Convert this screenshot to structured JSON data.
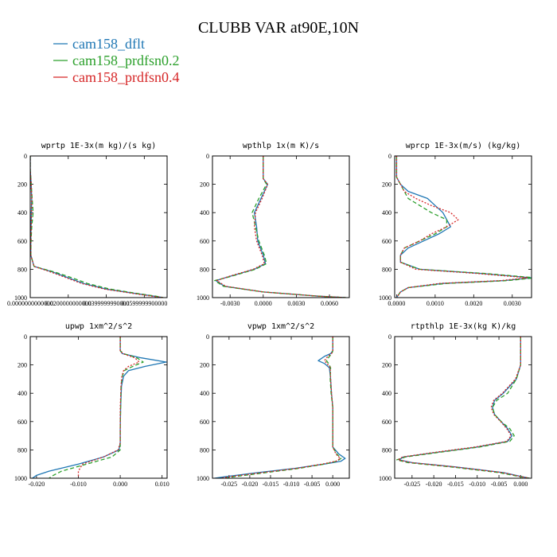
{
  "title": "CLUBB VAR at90E,10N",
  "legend": [
    {
      "name": "cam158_dflt",
      "color": "#1f77b4"
    },
    {
      "name": "cam158_prdfsn0.2",
      "color": "#2ca02c"
    },
    {
      "name": "cam158_prdfsn0.4",
      "color": "#d62728"
    }
  ],
  "chart_data": [
    {
      "type": "line",
      "title": "wprtp  1E-3x(m kg)/(s kg)",
      "xlim": [
        0,
        0.072
      ],
      "ylim": [
        1000,
        0
      ],
      "xticks": [
        0.0,
        0.02,
        0.04,
        0.06
      ],
      "xtick_labels": [
        "0.0000000000000",
        "0.0200000000000",
        "0.0399999990000",
        "0.0599999900000"
      ],
      "yticks": [
        0,
        200,
        400,
        600,
        800,
        1000
      ],
      "ytick_labels": [
        "0",
        "200",
        "400",
        "600",
        "800",
        "1000"
      ],
      "series": [
        {
          "name": "cam158_dflt",
          "y": [
            0,
            100,
            200,
            300,
            400,
            500,
            600,
            700,
            780,
            820,
            860,
            900,
            940,
            970,
            990,
            1000
          ],
          "x": [
            0.0,
            0.0,
            0.0005,
            0.0008,
            0.0006,
            0.0004,
            0.0003,
            0.0003,
            0.002,
            0.012,
            0.02,
            0.028,
            0.04,
            0.055,
            0.065,
            0.07
          ]
        },
        {
          "name": "cam158_prdfsn0.2",
          "y": [
            0,
            100,
            200,
            300,
            400,
            500,
            600,
            700,
            780,
            820,
            860,
            900,
            940,
            970,
            990,
            1000
          ],
          "x": [
            0.0,
            0.0,
            0.0005,
            0.001,
            0.0015,
            0.0008,
            0.0004,
            0.0003,
            0.002,
            0.013,
            0.022,
            0.03,
            0.042,
            0.056,
            0.066,
            0.07
          ]
        },
        {
          "name": "cam158_prdfsn0.4",
          "y": [
            0,
            100,
            200,
            300,
            400,
            500,
            600,
            700,
            780,
            820,
            860,
            900,
            940,
            970,
            990,
            1000
          ],
          "x": [
            0.0,
            0.0,
            0.0005,
            0.0008,
            0.0007,
            0.0005,
            0.0003,
            0.0003,
            0.002,
            0.011,
            0.019,
            0.027,
            0.039,
            0.054,
            0.064,
            0.07
          ]
        }
      ]
    },
    {
      "type": "line",
      "title": "wpthlp  1x(m K)/s",
      "xlim": [
        -0.0046,
        0.0078
      ],
      "ylim": [
        1000,
        0
      ],
      "xticks": [
        -0.003,
        0.0,
        0.003,
        0.006
      ],
      "xtick_labels": [
        "-0.0030",
        "0.0000",
        "0.0030",
        "0.0060"
      ],
      "yticks": [
        0,
        200,
        400,
        600,
        800,
        1000
      ],
      "ytick_labels": [
        "0",
        "200",
        "400",
        "600",
        "800",
        "1000"
      ],
      "series": [
        {
          "name": "cam158_dflt",
          "y": [
            0,
            100,
            160,
            200,
            300,
            400,
            500,
            600,
            700,
            760,
            800,
            850,
            880,
            920,
            960,
            990,
            1000
          ],
          "x": [
            0.0,
            0.0,
            0.0,
            0.0004,
            -0.0002,
            -0.0008,
            -0.0006,
            -0.0005,
            0.0,
            0.0002,
            -0.0008,
            -0.003,
            -0.0043,
            -0.0035,
            0.0,
            0.005,
            0.0075
          ]
        },
        {
          "name": "cam158_prdfsn0.2",
          "y": [
            0,
            100,
            160,
            200,
            300,
            400,
            500,
            600,
            700,
            760,
            800,
            850,
            880,
            920,
            960,
            990,
            1000
          ],
          "x": [
            0.0,
            0.0,
            0.0,
            0.0003,
            -0.0004,
            -0.001,
            -0.0007,
            -0.0004,
            0.0001,
            0.0003,
            -0.0007,
            -0.0029,
            -0.0044,
            -0.0036,
            0.0,
            0.005,
            0.0075
          ]
        },
        {
          "name": "cam158_prdfsn0.4",
          "y": [
            0,
            100,
            160,
            200,
            300,
            400,
            500,
            600,
            700,
            760,
            800,
            850,
            880,
            920,
            960,
            990,
            1000
          ],
          "x": [
            0.0,
            0.0,
            0.0,
            0.0004,
            -0.0001,
            -0.0007,
            -0.0008,
            -0.0006,
            -0.0001,
            0.0001,
            -0.0009,
            -0.0031,
            -0.0042,
            -0.0034,
            0.0,
            0.005,
            0.0075
          ]
        }
      ]
    },
    {
      "type": "line",
      "title": "wprcp  1E-3x(m/s) (kg/kg)",
      "xlim": [
        -5e-05,
        0.0035
      ],
      "ylim": [
        1000,
        0
      ],
      "xticks": [
        0.0,
        0.001,
        0.002,
        0.003
      ],
      "xtick_labels": [
        "0.0000",
        "0.0010",
        "0.0020",
        "0.0030"
      ],
      "yticks": [
        0,
        200,
        400,
        600,
        800,
        1000
      ],
      "ytick_labels": [
        "0",
        "200",
        "400",
        "600",
        "800",
        "1000"
      ],
      "series": [
        {
          "name": "cam158_dflt",
          "y": [
            0,
            100,
            150,
            200,
            250,
            300,
            350,
            400,
            450,
            500,
            550,
            600,
            650,
            700,
            750,
            800,
            830,
            860,
            880,
            900,
            930,
            960,
            1000
          ],
          "x": [
            0.0,
            0.0,
            0.0,
            0.0001,
            0.0003,
            0.0008,
            0.001,
            0.0012,
            0.0013,
            0.0014,
            0.0011,
            0.0007,
            0.0003,
            0.0001,
            0.0001,
            0.0006,
            0.0022,
            0.0035,
            0.0028,
            0.0012,
            0.0003,
            0.0001,
            0.0
          ]
        },
        {
          "name": "cam158_prdfsn0.2",
          "y": [
            0,
            100,
            150,
            200,
            250,
            300,
            350,
            400,
            450,
            500,
            550,
            600,
            650,
            700,
            750,
            800,
            830,
            860,
            880,
            900,
            930,
            960,
            1000
          ],
          "x": [
            0.0,
            0.0,
            0.0,
            0.0001,
            0.0002,
            0.0003,
            0.0006,
            0.0009,
            0.0013,
            0.0013,
            0.001,
            0.0006,
            0.0002,
            0.0001,
            0.0001,
            0.0006,
            0.0023,
            0.0036,
            0.0029,
            0.0013,
            0.0003,
            0.0001,
            0.0
          ]
        },
        {
          "name": "cam158_prdfsn0.4",
          "y": [
            0,
            100,
            150,
            200,
            250,
            300,
            350,
            400,
            450,
            500,
            550,
            600,
            650,
            700,
            750,
            800,
            830,
            860,
            880,
            900,
            930,
            960,
            1000
          ],
          "x": [
            0.0,
            0.0,
            0.0,
            0.0001,
            0.0002,
            0.0005,
            0.0009,
            0.0014,
            0.0016,
            0.0013,
            0.0009,
            0.0006,
            0.0002,
            0.0001,
            0.0001,
            0.0005,
            0.0021,
            0.0034,
            0.0027,
            0.0011,
            0.0003,
            0.0001,
            0.0
          ]
        }
      ]
    },
    {
      "type": "line",
      "title": "upwp  1xm^2/s^2",
      "xlim": [
        -0.0215,
        0.0112
      ],
      "ylim": [
        1000,
        0
      ],
      "xticks": [
        -0.02,
        -0.01,
        0.0,
        0.01
      ],
      "xtick_labels": [
        "-0.020",
        "-0.010",
        "0.000",
        "0.010"
      ],
      "yticks": [
        0,
        200,
        400,
        600,
        800,
        1000
      ],
      "ytick_labels": [
        "0",
        "200",
        "400",
        "600",
        "800",
        "1000"
      ],
      "series": [
        {
          "name": "cam158_dflt",
          "y": [
            0,
            100,
            120,
            150,
            180,
            210,
            240,
            280,
            350,
            500,
            650,
            750,
            800,
            850,
            900,
            950,
            980,
            1000
          ],
          "x": [
            0.0,
            0.0,
            0.0005,
            0.005,
            0.011,
            0.006,
            0.002,
            0.0008,
            0.0003,
            0.0001,
            0.0,
            0.0,
            -0.0003,
            -0.004,
            -0.01,
            -0.017,
            -0.02,
            -0.021
          ]
        },
        {
          "name": "cam158_prdfsn0.2",
          "y": [
            0,
            100,
            120,
            150,
            180,
            210,
            240,
            280,
            350,
            500,
            650,
            750,
            800,
            850,
            900,
            950,
            980,
            1000
          ],
          "x": [
            0.0,
            0.0,
            0.0008,
            0.004,
            0.0055,
            0.003,
            0.001,
            0.0005,
            0.0002,
            0.0001,
            0.0,
            0.0,
            0.0,
            -0.002,
            -0.008,
            -0.014,
            -0.016,
            -0.017
          ]
        },
        {
          "name": "cam158_prdfsn0.4",
          "y": [
            0,
            100,
            120,
            150,
            180,
            210,
            240,
            280,
            350,
            500,
            650,
            750,
            800,
            850,
            900,
            950,
            980,
            1000
          ],
          "x": [
            0.0,
            0.0,
            0.0006,
            0.0035,
            0.0045,
            0.002,
            0.0008,
            0.0004,
            0.0002,
            0.0,
            0.0,
            0.0,
            -0.0005,
            -0.004,
            -0.009,
            -0.01,
            -0.01,
            -0.01
          ]
        }
      ]
    },
    {
      "type": "line",
      "title": "vpwp  1xm^2/s^2",
      "xlim": [
        -0.029,
        0.004
      ],
      "ylim": [
        1000,
        0
      ],
      "xticks": [
        -0.025,
        -0.02,
        -0.015,
        -0.01,
        -0.005,
        0.0
      ],
      "xtick_labels": [
        "-0.025",
        "-0.020",
        "-0.015",
        "-0.010",
        "-0.005",
        "0.000"
      ],
      "yticks": [
        0,
        200,
        400,
        600,
        800,
        1000
      ],
      "ytick_labels": [
        "0",
        "200",
        "400",
        "600",
        "800",
        "1000"
      ],
      "series": [
        {
          "name": "cam158_dflt",
          "y": [
            0,
            100,
            120,
            140,
            170,
            190,
            220,
            300,
            400,
            500,
            600,
            700,
            780,
            830,
            860,
            880,
            900,
            930,
            960,
            990,
            1000
          ],
          "x": [
            0.0,
            0.0,
            -0.0005,
            -0.002,
            -0.0035,
            -0.002,
            -0.0008,
            -0.0005,
            -0.0003,
            0.0,
            0.0,
            0.0,
            0.0,
            0.0015,
            0.003,
            0.002,
            -0.002,
            -0.009,
            -0.018,
            -0.026,
            -0.0285
          ]
        },
        {
          "name": "cam158_prdfsn0.2",
          "y": [
            0,
            100,
            120,
            140,
            170,
            190,
            220,
            300,
            400,
            500,
            600,
            700,
            780,
            830,
            860,
            880,
            900,
            930,
            960,
            990,
            1000
          ],
          "x": [
            0.0,
            0.0,
            -0.0002,
            -0.0008,
            -0.0015,
            -0.001,
            -0.0005,
            -0.0006,
            -0.0004,
            0.0,
            0.0,
            0.0,
            0.0,
            0.001,
            0.002,
            0.001,
            -0.002,
            -0.008,
            -0.016,
            -0.024,
            -0.026
          ]
        },
        {
          "name": "cam158_prdfsn0.4",
          "y": [
            0,
            100,
            120,
            140,
            170,
            190,
            220,
            300,
            400,
            500,
            600,
            700,
            780,
            830,
            860,
            880,
            900,
            930,
            960,
            990,
            1000
          ],
          "x": [
            0.0,
            0.0,
            -0.0003,
            -0.0012,
            -0.002,
            -0.0014,
            -0.0006,
            -0.0005,
            -0.0003,
            0.0,
            0.0,
            0.0,
            0.0,
            0.0008,
            0.0018,
            0.0008,
            -0.0025,
            -0.0085,
            -0.017,
            -0.025,
            -0.027
          ]
        }
      ]
    },
    {
      "type": "line",
      "title": "rtpthlp  1E-3x(kg K)/kg",
      "xlim": [
        -0.029,
        0.0025
      ],
      "ylim": [
        1000,
        0
      ],
      "xticks": [
        -0.025,
        -0.02,
        -0.015,
        -0.01,
        -0.005,
        0.0
      ],
      "xtick_labels": [
        "-0.025",
        "-0.020",
        "-0.015",
        "-0.010",
        "-0.005",
        "0.000"
      ],
      "yticks": [
        0,
        200,
        400,
        600,
        800,
        1000
      ],
      "ytick_labels": [
        "0",
        "200",
        "400",
        "600",
        "800",
        "1000"
      ],
      "series": [
        {
          "name": "cam158_dflt",
          "y": [
            0,
            200,
            300,
            400,
            450,
            500,
            550,
            600,
            650,
            700,
            740,
            780,
            820,
            850,
            870,
            890,
            920,
            960,
            990,
            1000
          ],
          "x": [
            0.0,
            0.0,
            -0.001,
            -0.004,
            -0.006,
            -0.0065,
            -0.006,
            -0.0045,
            -0.003,
            -0.002,
            -0.003,
            -0.01,
            -0.02,
            -0.027,
            -0.028,
            -0.025,
            -0.015,
            -0.004,
            0.0005,
            0.002
          ]
        },
        {
          "name": "cam158_prdfsn0.2",
          "y": [
            0,
            200,
            300,
            400,
            450,
            500,
            550,
            600,
            650,
            700,
            740,
            780,
            820,
            850,
            870,
            890,
            920,
            960,
            990,
            1000
          ],
          "x": [
            0.0,
            0.0,
            -0.001,
            -0.003,
            -0.0055,
            -0.0065,
            -0.006,
            -0.0045,
            -0.0025,
            -0.0015,
            -0.0025,
            -0.0095,
            -0.0195,
            -0.0265,
            -0.0285,
            -0.026,
            -0.016,
            -0.005,
            0.0,
            0.002
          ]
        },
        {
          "name": "cam158_prdfsn0.4",
          "y": [
            0,
            200,
            300,
            400,
            450,
            500,
            550,
            600,
            650,
            700,
            740,
            780,
            820,
            850,
            870,
            890,
            920,
            960,
            990,
            1000
          ],
          "x": [
            0.0,
            0.0,
            -0.0012,
            -0.0042,
            -0.0062,
            -0.0068,
            -0.0062,
            -0.0046,
            -0.0032,
            -0.0022,
            -0.0032,
            -0.0105,
            -0.0205,
            -0.0272,
            -0.0282,
            -0.0252,
            -0.0152,
            -0.0042,
            0.0003,
            0.002
          ]
        }
      ]
    }
  ]
}
